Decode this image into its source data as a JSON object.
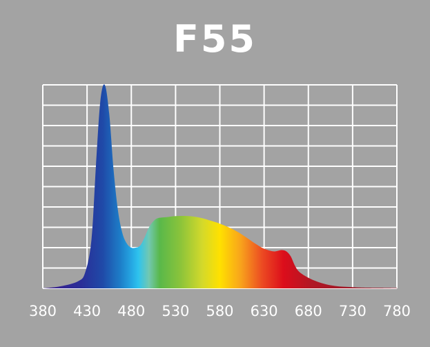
{
  "chart_data": {
    "type": "area",
    "title": "F55",
    "xlabel": "",
    "ylabel": "",
    "xlim": [
      380,
      780
    ],
    "ylim": [
      0,
      1
    ],
    "grid": true,
    "x_ticks": [
      380,
      430,
      480,
      530,
      580,
      630,
      680,
      730,
      780
    ],
    "x_tick_labels": [
      "380",
      "430",
      "480",
      "530",
      "580",
      "630",
      "680",
      "730",
      "780"
    ],
    "y_grid_count": 10,
    "series": [
      {
        "x": [
          380,
          400,
          420,
          428,
          435,
          440,
          445,
          450,
          455,
          460,
          465,
          470,
          475,
          480,
          485,
          490,
          495,
          500,
          505,
          510,
          520,
          530,
          540,
          550,
          560,
          570,
          580,
          590,
          600,
          610,
          620,
          630,
          640,
          645,
          650,
          655,
          660,
          665,
          670,
          680,
          690,
          700,
          710,
          720,
          730,
          740,
          760,
          780
        ],
        "values": [
          0.0,
          0.01,
          0.035,
          0.08,
          0.24,
          0.6,
          0.92,
          1.0,
          0.86,
          0.58,
          0.38,
          0.27,
          0.22,
          0.2,
          0.2,
          0.21,
          0.25,
          0.3,
          0.33,
          0.345,
          0.35,
          0.355,
          0.356,
          0.353,
          0.345,
          0.332,
          0.318,
          0.3,
          0.278,
          0.25,
          0.22,
          0.195,
          0.182,
          0.184,
          0.188,
          0.182,
          0.158,
          0.11,
          0.08,
          0.052,
          0.033,
          0.02,
          0.012,
          0.008,
          0.006,
          0.004,
          0.003,
          0.002
        ]
      }
    ]
  }
}
